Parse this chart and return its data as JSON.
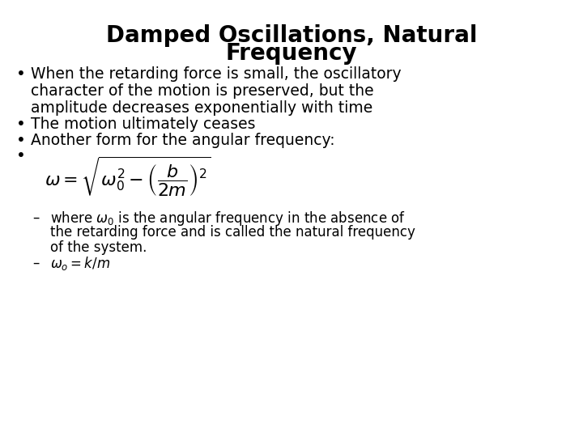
{
  "title_line1": "Damped Oscillations, Natural",
  "title_line2": "Frequency",
  "background_color": "#ffffff",
  "text_color": "#000000",
  "title_fontsize": 20,
  "body_fontsize": 13.5,
  "sub_fontsize": 12,
  "eq_fontsize": 13,
  "bullet1_line1": "When the retarding force is small, the oscillatory",
  "bullet1_line2": "character of the motion is preserved, but the",
  "bullet1_line3": "amplitude decreases exponentially with time",
  "bullet2": "The motion ultimately ceases",
  "bullet3": "Another form for the angular frequency:",
  "sub1_line1": "where $\\omega_0$ is the angular frequency in the absence of",
  "sub1_line2": "the retarding force and is called the natural frequency",
  "sub1_line3": "of the system.",
  "sub2": "$\\omega_o = k/m$"
}
